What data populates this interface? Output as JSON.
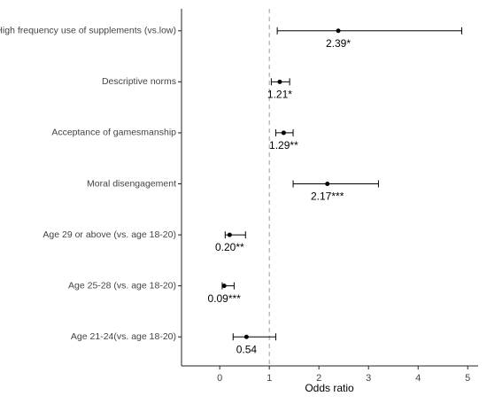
{
  "chart_data": {
    "type": "forest",
    "x_label": "Odds ratio",
    "categories": [
      "High frequency use of supplements (vs.low)",
      "Descriptive norms",
      "Acceptance of gamesmanship",
      "Moral disengagement",
      "Age 29 or above (vs. age 18-20)",
      "Age 25-28 (vs. age 18-20)",
      "Age 21-24(vs. age 18-20)"
    ],
    "values": [
      2.39,
      1.21,
      1.29,
      2.17,
      0.2,
      0.09,
      0.54
    ],
    "value_labels": [
      "2.39*",
      "1.21*",
      "1.29**",
      "2.17***",
      "0.20**",
      "0.09***",
      "0.54"
    ],
    "lower": [
      1.16,
      1.04,
      1.13,
      1.48,
      0.11,
      0.05,
      0.27
    ],
    "upper": [
      4.88,
      1.41,
      1.48,
      3.2,
      0.52,
      0.29,
      1.13
    ],
    "color": "#000000",
    "reference_line": 1,
    "xlim": [
      -0.77,
      5.21
    ],
    "xticks": [
      0,
      1,
      2,
      3,
      4,
      5
    ]
  }
}
